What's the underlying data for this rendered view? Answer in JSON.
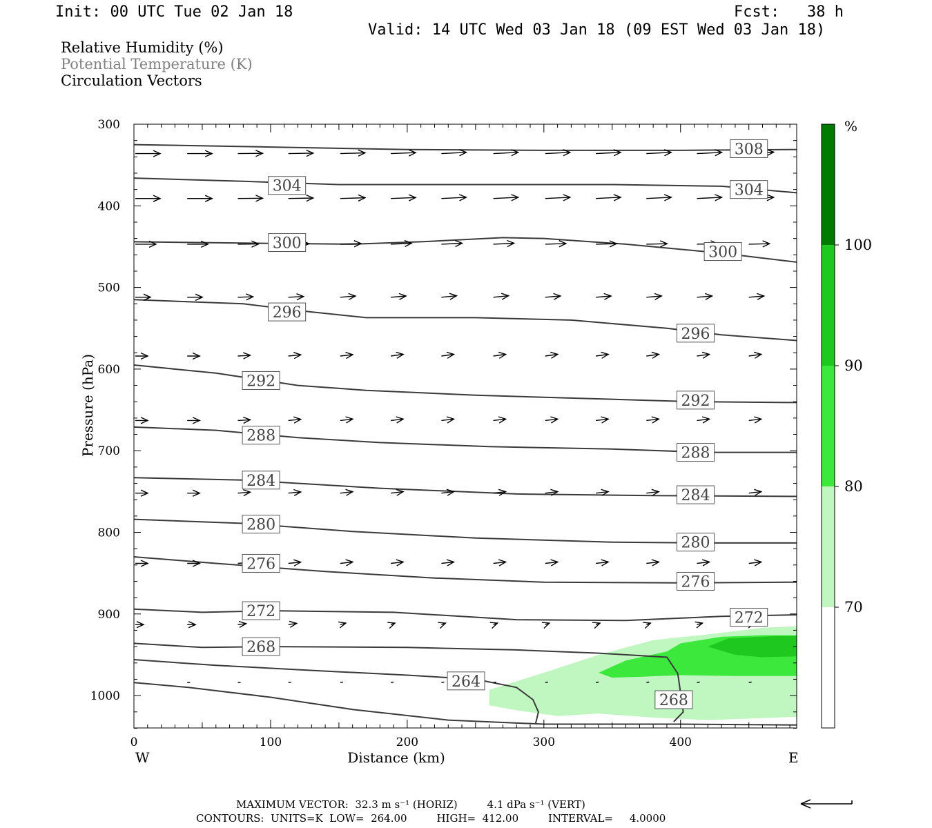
{
  "header": {
    "init": "Init: 00 UTC Tue 02 Jan 18",
    "fcst": "Fcst:   38 h",
    "valid": "Valid: 14 UTC Wed 03 Jan 18 (09 EST Wed 03 Jan 18)"
  },
  "legend": {
    "rh": "Relative Humidity (%)",
    "theta": "Potential Temperature (K)",
    "vectors": "Circulation Vectors"
  },
  "colors": {
    "rh70": "#c0f6c0",
    "rh80": "#3de83d",
    "rh90": "#1ec81e",
    "rh100": "#007a00",
    "contour": "#3a3a3a"
  },
  "footer": {
    "max_vector": "MAXIMUM VECTOR:  32.3 m s⁻¹ (HORIZ)         4.1 dPa s⁻¹ (VERT)",
    "contours": "CONTOURS:  UNITS=K  LOW=  264.00         HIGH=  412.00         INTERVAL=     4.0000"
  },
  "chart_data": {
    "type": "cross-section",
    "xlabel": "Distance (km)",
    "ylabel": "Pressure (hPa)",
    "xlim": [
      0,
      485
    ],
    "ylim": [
      1040,
      300
    ],
    "x_ticks": [
      "0",
      "100",
      "200",
      "300",
      "400"
    ],
    "y_ticks": [
      "300",
      "400",
      "500",
      "600",
      "700",
      "800",
      "900",
      "1000"
    ],
    "x_end_labels": {
      "left": "W",
      "right": "E"
    },
    "colorbar": {
      "unit": "%",
      "levels": [
        "70",
        "80",
        "90",
        "100"
      ]
    },
    "rh_regions": [
      {
        "level": 70,
        "polygon": [
          [
            260,
            993
          ],
          [
            300,
            972
          ],
          [
            340,
            950
          ],
          [
            380,
            932
          ],
          [
            420,
            925
          ],
          [
            460,
            917
          ],
          [
            485,
            915
          ],
          [
            485,
            1026
          ],
          [
            420,
            1030
          ],
          [
            380,
            1027
          ],
          [
            340,
            1022
          ],
          [
            310,
            1025
          ],
          [
            280,
            1018
          ],
          [
            260,
            1012
          ]
        ]
      },
      {
        "level": 80,
        "polygon": [
          [
            340,
            972
          ],
          [
            360,
            957
          ],
          [
            390,
            946
          ],
          [
            400,
            936
          ],
          [
            430,
            928
          ],
          [
            460,
            926
          ],
          [
            485,
            926
          ],
          [
            485,
            976
          ],
          [
            440,
            976
          ],
          [
            400,
            975
          ],
          [
            370,
            977
          ],
          [
            350,
            978
          ]
        ]
      },
      {
        "level": 90,
        "polygon": [
          [
            420,
            940
          ],
          [
            435,
            930
          ],
          [
            470,
            927
          ],
          [
            485,
            927
          ],
          [
            485,
            952
          ],
          [
            460,
            953
          ],
          [
            440,
            950
          ]
        ]
      }
    ],
    "theta_contours": [
      {
        "label": "308",
        "points": [
          [
            0,
            325
          ],
          [
            100,
            328
          ],
          [
            200,
            331
          ],
          [
            300,
            332
          ],
          [
            400,
            332
          ],
          [
            485,
            331
          ]
        ],
        "labels_at": [
          [
            450,
            330
          ]
        ]
      },
      {
        "label": "304",
        "points": [
          [
            0,
            366
          ],
          [
            80,
            370
          ],
          [
            150,
            374
          ],
          [
            250,
            374
          ],
          [
            350,
            374
          ],
          [
            430,
            376
          ],
          [
            485,
            384
          ]
        ],
        "labels_at": [
          [
            112,
            375
          ],
          [
            450,
            380
          ]
        ]
      },
      {
        "label": "300",
        "points": [
          [
            0,
            444
          ],
          [
            100,
            446
          ],
          [
            160,
            447
          ],
          [
            210,
            444
          ],
          [
            270,
            439
          ],
          [
            300,
            440
          ],
          [
            360,
            447
          ],
          [
            430,
            458
          ],
          [
            485,
            469
          ]
        ],
        "labels_at": [
          [
            112,
            445
          ],
          [
            431,
            456
          ]
        ]
      },
      {
        "label": "296",
        "points": [
          [
            0,
            515
          ],
          [
            80,
            520
          ],
          [
            130,
            530
          ],
          [
            170,
            537
          ],
          [
            250,
            537
          ],
          [
            320,
            540
          ],
          [
            390,
            550
          ],
          [
            430,
            558
          ],
          [
            485,
            565
          ]
        ],
        "labels_at": [
          [
            112,
            530
          ],
          [
            411,
            556
          ]
        ]
      },
      {
        "label": "292",
        "points": [
          [
            0,
            595
          ],
          [
            60,
            605
          ],
          [
            120,
            620
          ],
          [
            170,
            626
          ],
          [
            250,
            632
          ],
          [
            330,
            636
          ],
          [
            410,
            640
          ],
          [
            485,
            641
          ]
        ],
        "labels_at": [
          [
            93,
            614
          ],
          [
            411,
            638
          ]
        ]
      },
      {
        "label": "288",
        "points": [
          [
            0,
            671
          ],
          [
            60,
            675
          ],
          [
            120,
            684
          ],
          [
            180,
            690
          ],
          [
            260,
            695
          ],
          [
            350,
            698
          ],
          [
            420,
            702
          ],
          [
            485,
            702
          ]
        ],
        "labels_at": [
          [
            93,
            681
          ],
          [
            411,
            702
          ]
        ]
      },
      {
        "label": "284",
        "points": [
          [
            0,
            733
          ],
          [
            80,
            736
          ],
          [
            180,
            746
          ],
          [
            280,
            753
          ],
          [
            380,
            755
          ],
          [
            485,
            756
          ]
        ],
        "labels_at": [
          [
            93,
            736
          ],
          [
            411,
            754
          ]
        ]
      },
      {
        "label": "280",
        "points": [
          [
            0,
            784
          ],
          [
            80,
            789
          ],
          [
            160,
            799
          ],
          [
            250,
            807
          ],
          [
            350,
            812
          ],
          [
            420,
            813
          ],
          [
            485,
            813
          ]
        ],
        "labels_at": [
          [
            93,
            790
          ],
          [
            411,
            812
          ]
        ]
      },
      {
        "label": "276",
        "points": [
          [
            0,
            830
          ],
          [
            60,
            838
          ],
          [
            140,
            848
          ],
          [
            220,
            856
          ],
          [
            300,
            861
          ],
          [
            400,
            862
          ],
          [
            485,
            861
          ]
        ],
        "labels_at": [
          [
            93,
            838
          ],
          [
            411,
            860
          ]
        ]
      },
      {
        "label": "272",
        "points": [
          [
            0,
            894
          ],
          [
            50,
            898
          ],
          [
            100,
            896
          ],
          [
            190,
            898
          ],
          [
            280,
            907
          ],
          [
            360,
            908
          ],
          [
            430,
            903
          ],
          [
            485,
            901
          ]
        ],
        "labels_at": [
          [
            93,
            896
          ],
          [
            450,
            904
          ]
        ]
      },
      {
        "label": "268",
        "points": [
          [
            0,
            936
          ],
          [
            50,
            941
          ],
          [
            100,
            940
          ],
          [
            200,
            941
          ],
          [
            280,
            944
          ],
          [
            340,
            948
          ],
          [
            390,
            953
          ],
          [
            398,
            973
          ],
          [
            402,
            1020
          ],
          [
            395,
            1032
          ]
        ],
        "labels_at": [
          [
            93,
            940
          ],
          [
            395,
            1005
          ]
        ]
      },
      {
        "label": "264",
        "points": [
          [
            0,
            956
          ],
          [
            60,
            963
          ],
          [
            140,
            970
          ],
          [
            200,
            975
          ],
          [
            250,
            980
          ],
          [
            280,
            990
          ],
          [
            292,
            1005
          ],
          [
            296,
            1020
          ],
          [
            294,
            1034
          ]
        ],
        "labels_at": [
          [
            243,
            982
          ]
        ]
      },
      {
        "label": "",
        "points": [
          [
            0,
            984
          ],
          [
            40,
            990
          ],
          [
            100,
            1002
          ],
          [
            160,
            1017
          ],
          [
            230,
            1030
          ],
          [
            300,
            1035
          ],
          [
            400,
            1035
          ],
          [
            485,
            1036
          ]
        ],
        "labels_at": []
      }
    ],
    "vector_rows": [
      {
        "p": 336,
        "x": [
          0,
          38,
          75,
          112,
          150,
          187,
          224,
          262,
          300,
          337,
          374,
          411,
          449
        ],
        "u": [
          36,
          36,
          36,
          36,
          36,
          36,
          36,
          36,
          36,
          36,
          36,
          36,
          36
        ],
        "w": [
          0,
          0,
          1,
          2,
          3,
          4,
          5,
          5,
          5,
          5,
          5,
          5,
          6
        ]
      },
      {
        "p": 391,
        "x": [
          0,
          38,
          75,
          112,
          150,
          187,
          224,
          262,
          300,
          337,
          374,
          411,
          449
        ],
        "u": [
          36,
          36,
          36,
          36,
          36,
          36,
          36,
          36,
          36,
          36,
          36,
          36,
          36
        ],
        "w": [
          0,
          0,
          1,
          2,
          3,
          4,
          5,
          5,
          5,
          5,
          5,
          5,
          5
        ]
      },
      {
        "p": 447,
        "x": [
          0,
          38,
          75,
          112,
          150,
          187,
          224,
          262,
          300,
          337,
          374,
          411,
          449
        ],
        "u": [
          30,
          30,
          30,
          30,
          30,
          30,
          30,
          30,
          30,
          30,
          30,
          30,
          30
        ],
        "w": [
          0,
          0,
          1,
          2,
          3,
          4,
          4,
          4,
          3,
          2,
          2,
          2,
          2
        ]
      },
      {
        "p": 512,
        "x": [
          0,
          38,
          75,
          112,
          150,
          187,
          224,
          262,
          300,
          337,
          374,
          411,
          449
        ],
        "u": [
          22,
          22,
          22,
          22,
          22,
          22,
          22,
          22,
          22,
          22,
          22,
          22,
          22
        ],
        "w": [
          0,
          0,
          2,
          3,
          5,
          5,
          6,
          6,
          5,
          5,
          5,
          5,
          5
        ]
      },
      {
        "p": 584,
        "x": [
          0,
          38,
          75,
          112,
          150,
          187,
          224,
          262,
          300,
          337,
          374,
          411,
          449
        ],
        "u": [
          18,
          18,
          18,
          18,
          18,
          18,
          18,
          18,
          18,
          18,
          18,
          18,
          18
        ],
        "w": [
          0,
          0,
          3,
          5,
          6,
          7,
          7,
          7,
          7,
          7,
          7,
          7,
          7
        ]
      },
      {
        "p": 663,
        "x": [
          0,
          38,
          75,
          112,
          150,
          187,
          224,
          262,
          300,
          337,
          374,
          411,
          449
        ],
        "u": [
          18,
          18,
          18,
          18,
          18,
          18,
          18,
          18,
          18,
          18,
          18,
          18,
          18
        ],
        "w": [
          0,
          0,
          3,
          5,
          6,
          6,
          6,
          6,
          6,
          6,
          6,
          6,
          6
        ]
      },
      {
        "p": 752,
        "x": [
          0,
          38,
          75,
          112,
          150,
          187,
          224,
          262,
          300,
          337,
          374,
          411,
          449
        ],
        "u": [
          18,
          18,
          18,
          18,
          18,
          18,
          18,
          18,
          18,
          18,
          18,
          18,
          18
        ],
        "w": [
          0,
          0,
          4,
          5,
          6,
          6,
          6,
          6,
          6,
          6,
          6,
          6,
          6
        ]
      },
      {
        "p": 838,
        "x": [
          0,
          38,
          75,
          112,
          150,
          187,
          224,
          262,
          300,
          337,
          374,
          411,
          449
        ],
        "u": [
          18,
          18,
          18,
          18,
          18,
          18,
          18,
          18,
          18,
          18,
          18,
          18,
          18
        ],
        "w": [
          0,
          0,
          4,
          5,
          6,
          6,
          6,
          6,
          6,
          6,
          6,
          6,
          6
        ]
      },
      {
        "p": 913,
        "x": [
          0,
          38,
          75,
          112,
          150,
          187,
          224,
          262,
          300,
          337,
          374,
          411,
          449
        ],
        "u": [
          12,
          12,
          12,
          12,
          8,
          6,
          6,
          6,
          6,
          6,
          6,
          8,
          8
        ],
        "w": [
          0,
          0,
          4,
          5,
          6,
          6,
          6,
          6,
          6,
          6,
          6,
          6,
          6
        ]
      },
      {
        "p": 984,
        "x": [
          38,
          75,
          112,
          150,
          187,
          224,
          262,
          300,
          337,
          374,
          411,
          449
        ],
        "u": [
          4,
          4,
          4,
          4,
          4,
          4,
          4,
          4,
          4,
          4,
          4,
          4
        ],
        "w": [
          0,
          0,
          1,
          2,
          2,
          2,
          2,
          2,
          2,
          2,
          2,
          2
        ]
      }
    ]
  }
}
